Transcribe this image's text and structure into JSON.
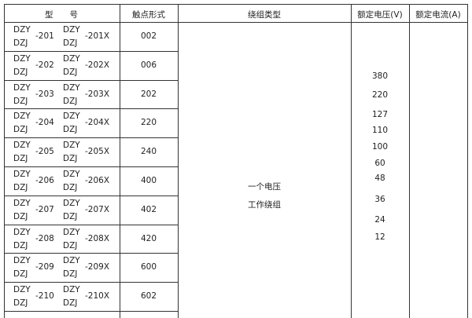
{
  "headers": {
    "model": "型　　号",
    "contact": "触点形式",
    "winding": "绕组类型",
    "voltage": "额定电压(V)",
    "current": "额定电流(A)"
  },
  "rows": [
    {
      "prefix_a": "DZY",
      "prefix_b": "DZJ",
      "num": "-201",
      "prefix_c": "DZY",
      "prefix_d": "DZJ",
      "numx": "-201X",
      "contact": "002"
    },
    {
      "prefix_a": "DZY",
      "prefix_b": "DZJ",
      "num": "-202",
      "prefix_c": "DZY",
      "prefix_d": "DZJ",
      "numx": "-202X",
      "contact": "006"
    },
    {
      "prefix_a": "DZY",
      "prefix_b": "DZJ",
      "num": "-203",
      "prefix_c": "DZY",
      "prefix_d": "DZJ",
      "numx": "-203X",
      "contact": "202"
    },
    {
      "prefix_a": "DZY",
      "prefix_b": "DZJ",
      "num": "-204",
      "prefix_c": "DZY",
      "prefix_d": "DZJ",
      "numx": "-204X",
      "contact": "220"
    },
    {
      "prefix_a": "DZY",
      "prefix_b": "DZJ",
      "num": "-205",
      "prefix_c": "DZY",
      "prefix_d": "DZJ",
      "numx": "-205X",
      "contact": "240"
    },
    {
      "prefix_a": "DZY",
      "prefix_b": "DZJ",
      "num": "-206",
      "prefix_c": "DZY",
      "prefix_d": "DZJ",
      "numx": "-206X",
      "contact": "400"
    },
    {
      "prefix_a": "DZY",
      "prefix_b": "DZJ",
      "num": "-207",
      "prefix_c": "DZY",
      "prefix_d": "DZJ",
      "numx": "-207X",
      "contact": "402"
    },
    {
      "prefix_a": "DZY",
      "prefix_b": "DZJ",
      "num": "-208",
      "prefix_c": "DZY",
      "prefix_d": "DZJ",
      "numx": "-208X",
      "contact": "420"
    },
    {
      "prefix_a": "DZY",
      "prefix_b": "DZJ",
      "num": "-209",
      "prefix_c": "DZY",
      "prefix_d": "DZJ",
      "numx": "-209X",
      "contact": "600"
    },
    {
      "prefix_a": "DZY",
      "prefix_b": "DZJ",
      "num": "-210",
      "prefix_c": "DZY",
      "prefix_d": "DZJ",
      "numx": "-210X",
      "contact": "602"
    }
  ],
  "winding": {
    "line1": "一个电压",
    "line2": "工作绕组"
  },
  "voltages": [
    "380",
    "220",
    "127",
    "110",
    "100",
    "60",
    "48",
    "36",
    "24",
    "12"
  ]
}
